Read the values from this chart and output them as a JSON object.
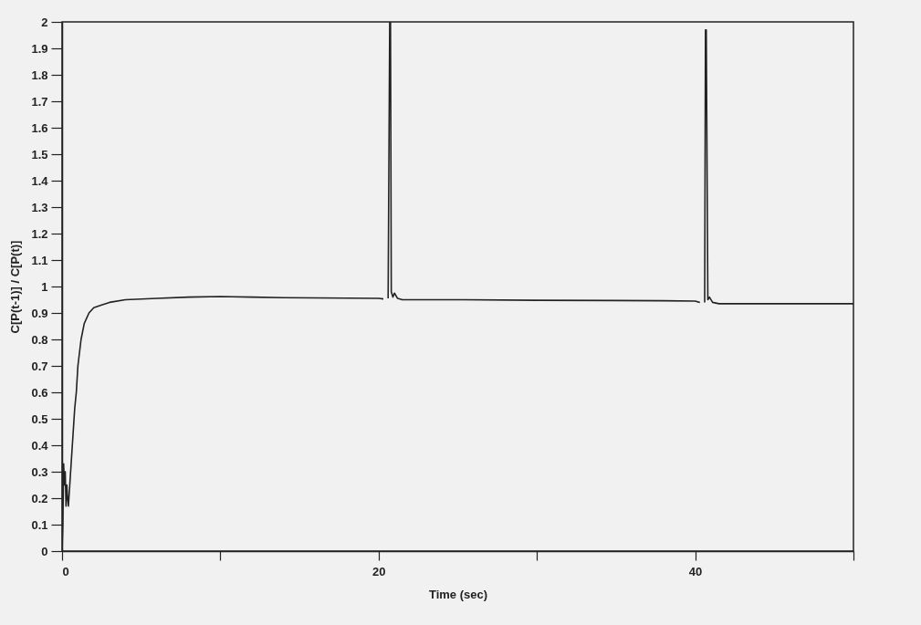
{
  "chart_data": {
    "type": "line",
    "xlabel": "Time (sec)",
    "ylabel": "C[P(t-1)] / C[P(t)]",
    "x": [
      0,
      0.05,
      0.1,
      0.15,
      0.2,
      0.25,
      0.3,
      0.35,
      0.4,
      0.8,
      0.9,
      1.0,
      1.2,
      1.4,
      1.7,
      2.0,
      2.5,
      3,
      4,
      6,
      8,
      10,
      12,
      14,
      16,
      18,
      20,
      20.3,
      20.4,
      20.6,
      20.7,
      20.75,
      20.8,
      20.9,
      21.0,
      21.2,
      21.5,
      22,
      25,
      30,
      35,
      38,
      40,
      40.3,
      40.5,
      40.6,
      40.65,
      40.7,
      40.8,
      40.9,
      41.1,
      41.5,
      42,
      45,
      48,
      50
    ],
    "series": [
      {
        "color": "#222222",
        "values": [
          0,
          0.1,
          0.33,
          0.25,
          0.3,
          0.17,
          0.25,
          0.2,
          0.17,
          0.54,
          0.6,
          0.7,
          0.8,
          0.86,
          0.9,
          0.92,
          0.93,
          0.94,
          0.95,
          0.955,
          0.96,
          0.962,
          0.96,
          0.958,
          0.957,
          0.956,
          0.955,
          0.953,
          null,
          0.955,
          2,
          2,
          0.98,
          0.96,
          0.975,
          0.955,
          0.95,
          0.95,
          0.95,
          0.948,
          0.947,
          0.946,
          0.945,
          0.94,
          null,
          0.94,
          1.97,
          1.97,
          0.95,
          0.96,
          0.94,
          0.935,
          0.935,
          0.935,
          0.935,
          0.935
        ]
      }
    ],
    "xlim": [
      0,
      50
    ],
    "xticks": [
      0,
      {
        "value": 10,
        "label": null
      },
      20,
      {
        "value": 30,
        "label": null
      },
      40,
      {
        "value": 50,
        "label": null
      }
    ],
    "ylim": [
      0,
      2
    ],
    "yticks": [
      0,
      0.1,
      0.2,
      0.3,
      0.4,
      0.5,
      0.6,
      0.7,
      0.8,
      0.9,
      1,
      1.1,
      1.2,
      1.3,
      1.4,
      1.5,
      1.6,
      1.7,
      1.8,
      1.9,
      2
    ],
    "grid": false,
    "legend": false,
    "line_style": "solid",
    "marker": "none"
  }
}
